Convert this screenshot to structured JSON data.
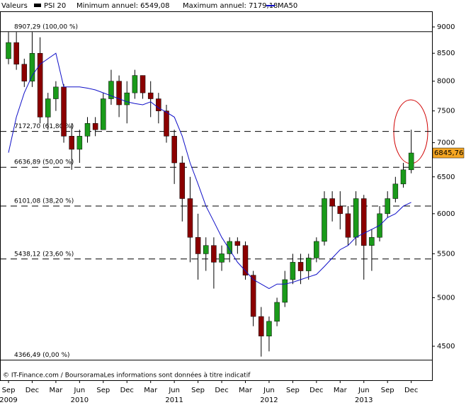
{
  "chart_data": {
    "type": "candlestick",
    "header_label": "Valeurs",
    "name": "PSI 20",
    "stats": [
      "Minimum annuel: 6549,08",
      "Maximum annuel: 7179,18"
    ],
    "up_color": "#1a9a1a",
    "down_color": "#8b0000",
    "x": [
      "2009-09",
      "2009-10",
      "2009-11",
      "2009-12",
      "2010-01",
      "2010-02",
      "2010-03",
      "2010-04",
      "2010-05",
      "2010-06",
      "2010-07",
      "2010-08",
      "2010-09",
      "2010-10",
      "2010-11",
      "2010-12",
      "2011-01",
      "2011-02",
      "2011-03",
      "2011-04",
      "2011-05",
      "2011-06",
      "2011-07",
      "2011-08",
      "2011-09",
      "2011-10",
      "2011-11",
      "2011-12",
      "2012-01",
      "2012-02",
      "2012-03",
      "2012-04",
      "2012-05",
      "2012-06",
      "2012-07",
      "2012-08",
      "2012-09",
      "2012-10",
      "2012-11",
      "2012-12",
      "2013-01",
      "2013-02",
      "2013-03",
      "2013-04",
      "2013-05",
      "2013-06",
      "2013-07",
      "2013-08",
      "2013-09",
      "2013-10",
      "2013-11",
      "2013-12"
    ],
    "open": [
      8400,
      8700,
      8300,
      8000,
      8500,
      7400,
      7700,
      7900,
      7100,
      6900,
      7100,
      7300,
      7200,
      7700,
      8000,
      7600,
      7800,
      8100,
      7800,
      7700,
      7500,
      7100,
      6700,
      6200,
      5700,
      5500,
      5600,
      5400,
      5500,
      5650,
      5600,
      5250,
      4800,
      4600,
      4750,
      4950,
      5200,
      5400,
      5300,
      5450,
      5650,
      6200,
      6100,
      6000,
      5700,
      6200,
      5600,
      5700,
      6000,
      6200,
      6400,
      6600
    ],
    "high": [
      8900,
      8900,
      8400,
      8900,
      8800,
      7800,
      8000,
      7950,
      7300,
      7200,
      7400,
      7400,
      7800,
      8200,
      8100,
      8000,
      8200,
      8100,
      8000,
      7800,
      7600,
      7200,
      6800,
      6500,
      6000,
      5700,
      5700,
      5600,
      5700,
      5700,
      5650,
      5300,
      4900,
      4800,
      5000,
      5300,
      5500,
      5500,
      5500,
      5700,
      6300,
      6300,
      6300,
      6100,
      6300,
      6250,
      5800,
      6100,
      6300,
      6500,
      6700,
      7200
    ],
    "low": [
      8300,
      8200,
      7900,
      7900,
      7300,
      7200,
      7500,
      7000,
      6600,
      6700,
      7000,
      7100,
      7200,
      7600,
      7400,
      7300,
      7700,
      7700,
      7400,
      7300,
      7000,
      6400,
      5900,
      5400,
      5200,
      5300,
      5100,
      5300,
      5400,
      5500,
      5200,
      4700,
      4400,
      4450,
      4700,
      4900,
      5150,
      5150,
      5200,
      5400,
      5600,
      5900,
      5800,
      5600,
      5600,
      5200,
      5300,
      5650,
      5950,
      6150,
      6350,
      6550
    ],
    "close": [
      8700,
      8300,
      8000,
      8500,
      7400,
      7700,
      7900,
      7100,
      6900,
      7100,
      7300,
      7200,
      7700,
      8000,
      7600,
      7800,
      8100,
      7800,
      7700,
      7500,
      7100,
      6700,
      6200,
      5700,
      5500,
      5600,
      5400,
      5500,
      5650,
      5600,
      5250,
      4800,
      4600,
      4750,
      4950,
      5200,
      5400,
      5300,
      5450,
      5650,
      6200,
      6100,
      6000,
      5700,
      6200,
      5600,
      5700,
      6000,
      6200,
      6400,
      6600,
      6845.76
    ],
    "ma": {
      "name": "MA50",
      "color": "#1010c8",
      "values": [
        6850,
        7400,
        7800,
        8100,
        8300,
        8400,
        8500,
        7900,
        7900,
        7900,
        7880,
        7850,
        7800,
        7750,
        7700,
        7650,
        7620,
        7600,
        7650,
        7550,
        7480,
        7400,
        7100,
        6700,
        6400,
        6100,
        5900,
        5700,
        5550,
        5400,
        5300,
        5200,
        5150,
        5100,
        5150,
        5150,
        5170,
        5200,
        5230,
        5260,
        5350,
        5450,
        5550,
        5600,
        5700,
        5750,
        5800,
        5850,
        5950,
        6000,
        6100,
        6150
      ]
    },
    "last_value": {
      "value": 6845.76,
      "label": "6845,76"
    },
    "levels": [
      {
        "value": 8907.29,
        "label": "8907,29 (100,00 %)"
      },
      {
        "value": 7172.7,
        "label": "7172,70 (61,80 %)"
      },
      {
        "value": 6636.89,
        "label": "6636,89 (50,00 %)"
      },
      {
        "value": 6101.08,
        "label": "6101,08 (38,20 %)"
      },
      {
        "value": 5438.12,
        "label": "5438,12 (23,60 %)"
      },
      {
        "value": 4366.49,
        "label": "4366,49 (0,00 %)"
      }
    ],
    "log_scale": true,
    "ylim": [
      4180,
      9310
    ],
    "yticks": [
      4500,
      5000,
      5500,
      6000,
      6500,
      7000,
      7500,
      8000,
      8500,
      9000
    ],
    "xticks": [
      {
        "value": "2009-09",
        "label": "Sep"
      },
      {
        "value": "2009-12",
        "label": "Dec"
      },
      {
        "value": "2010-03",
        "label": "Mar"
      },
      {
        "value": "2010-06",
        "label": "Jun"
      },
      {
        "value": "2010-09",
        "label": "Sep"
      },
      {
        "value": "2010-12",
        "label": "Dec"
      },
      {
        "value": "2011-03",
        "label": "Mar"
      },
      {
        "value": "2011-06",
        "label": "Jun"
      },
      {
        "value": "2011-09",
        "label": "Sep"
      },
      {
        "value": "2011-12",
        "label": "Dec"
      },
      {
        "value": "2012-03",
        "label": "Mar"
      },
      {
        "value": "2012-06",
        "label": "Jun"
      },
      {
        "value": "2012-09",
        "label": "Sep"
      },
      {
        "value": "2012-12",
        "label": "Dec"
      },
      {
        "value": "2013-03",
        "label": "Mar"
      },
      {
        "value": "2013-06",
        "label": "Jun"
      },
      {
        "value": "2013-09",
        "label": "Sep"
      },
      {
        "value": "2013-12",
        "label": "Dec"
      }
    ],
    "years": [
      {
        "value": "2009-09",
        "label": "2009"
      },
      {
        "value": "2010-06",
        "label": "2010"
      },
      {
        "value": "2011-06",
        "label": "2011"
      },
      {
        "value": "2012-06",
        "label": "2012"
      },
      {
        "value": "2013-06",
        "label": "2013"
      }
    ],
    "footer": "© IT-Finance.com / BoursoramaLes informations sont données à titre indicatif"
  }
}
